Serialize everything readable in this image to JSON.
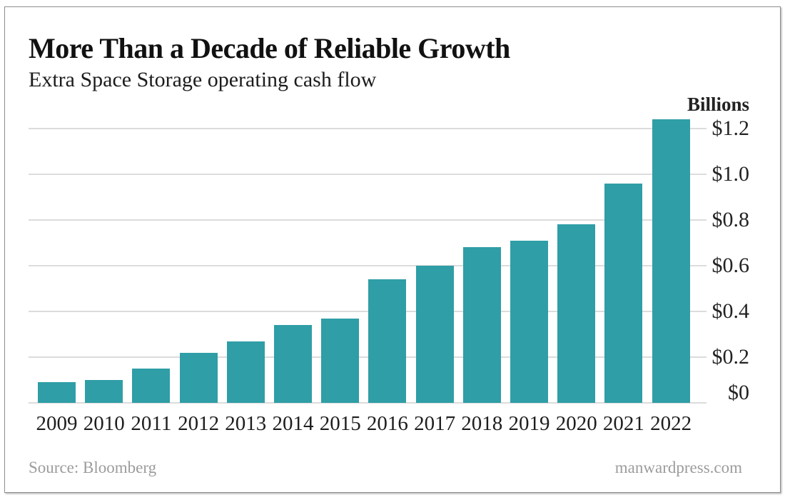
{
  "header": {
    "title": "More Than a Decade of Reliable Growth",
    "subtitle": "Extra Space Storage operating cash flow"
  },
  "chart_data": {
    "type": "bar",
    "title": "More Than a Decade of Reliable Growth",
    "subtitle": "Extra Space Storage operating cash flow",
    "unit_label": "Billions",
    "categories": [
      "2009",
      "2010",
      "2011",
      "2012",
      "2013",
      "2014",
      "2015",
      "2016",
      "2017",
      "2018",
      "2019",
      "2020",
      "2021",
      "2022"
    ],
    "values": [
      0.09,
      0.1,
      0.15,
      0.22,
      0.27,
      0.34,
      0.37,
      0.54,
      0.6,
      0.68,
      0.71,
      0.78,
      0.96,
      1.24
    ],
    "ylabel": "Billions",
    "ylim": [
      0,
      1.3
    ],
    "ytick_step": 0.2,
    "ytick_labels": [
      "$0",
      "$0.2",
      "$0.4",
      "$0.6",
      "$0.8",
      "$1.0",
      "$1.2"
    ],
    "grid": true,
    "legend_position": "none",
    "bar_color": "#2f9ea6",
    "gridline_color": "#dcdcdc"
  },
  "footer": {
    "source": "Source: Bloomberg",
    "site": "manwardpress.com"
  }
}
